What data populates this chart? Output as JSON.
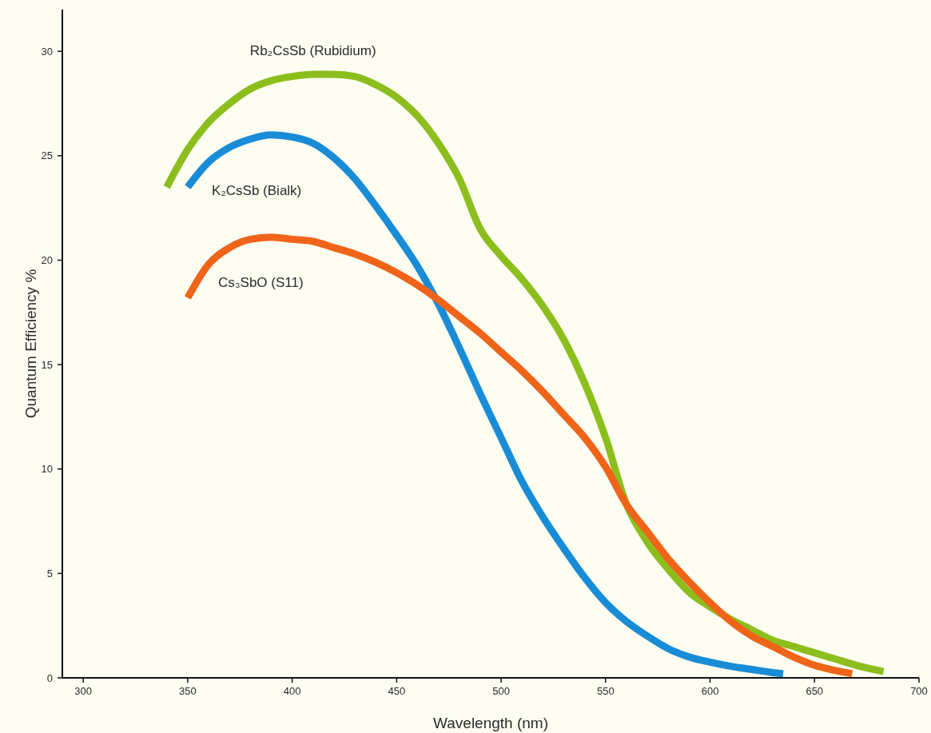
{
  "chart_data": {
    "type": "line",
    "xlabel": "Wavelength (nm)",
    "ylabel": "Quantum Efficiency %",
    "xlim": [
      290,
      700
    ],
    "ylim": [
      0,
      32
    ],
    "xticks": [
      300,
      350,
      400,
      450,
      500,
      550,
      600,
      650,
      700
    ],
    "yticks": [
      0,
      5,
      10,
      15,
      20,
      25,
      30
    ],
    "series": [
      {
        "name": "Rb₂CsSb (Rubidium)",
        "color": "#8cbe1e",
        "x": [
          340,
          350,
          360,
          370,
          380,
          390,
          400,
          410,
          420,
          430,
          440,
          450,
          460,
          470,
          480,
          490,
          500,
          510,
          520,
          530,
          540,
          550,
          560,
          570,
          580,
          590,
          600,
          610,
          620,
          630,
          640,
          650,
          660,
          670,
          683
        ],
        "values": [
          23.5,
          25.3,
          26.6,
          27.5,
          28.2,
          28.6,
          28.8,
          28.9,
          28.9,
          28.8,
          28.4,
          27.8,
          26.9,
          25.6,
          23.9,
          21.5,
          20.2,
          19.1,
          17.8,
          16.2,
          14.1,
          11.5,
          8.3,
          6.5,
          5.2,
          4.1,
          3.4,
          2.8,
          2.3,
          1.8,
          1.5,
          1.2,
          0.9,
          0.6,
          0.3
        ]
      },
      {
        "name": "K₂CsSb (Bialk)",
        "color": "#198cd7",
        "x": [
          350,
          360,
          370,
          380,
          390,
          400,
          410,
          420,
          430,
          440,
          450,
          460,
          470,
          480,
          490,
          500,
          510,
          520,
          530,
          540,
          550,
          560,
          570,
          580,
          590,
          600,
          610,
          620,
          630,
          635
        ],
        "values": [
          23.5,
          24.7,
          25.4,
          25.8,
          26.0,
          25.9,
          25.6,
          24.9,
          23.9,
          22.6,
          21.2,
          19.7,
          17.9,
          15.8,
          13.6,
          11.5,
          9.4,
          7.7,
          6.2,
          4.8,
          3.6,
          2.7,
          2.0,
          1.4,
          1.0,
          0.75,
          0.55,
          0.4,
          0.25,
          0.2
        ]
      },
      {
        "name": "Cs₃SbO (S11)",
        "color": "#f06419",
        "x": [
          350,
          360,
          370,
          380,
          390,
          400,
          410,
          420,
          430,
          440,
          450,
          460,
          470,
          480,
          490,
          500,
          510,
          520,
          530,
          540,
          550,
          560,
          570,
          580,
          590,
          600,
          610,
          620,
          630,
          640,
          650,
          660,
          668
        ],
        "values": [
          18.2,
          19.8,
          20.6,
          21.0,
          21.1,
          21.0,
          20.9,
          20.6,
          20.3,
          19.9,
          19.4,
          18.8,
          18.1,
          17.3,
          16.5,
          15.6,
          14.7,
          13.7,
          12.6,
          11.5,
          10.1,
          8.3,
          7.0,
          5.7,
          4.6,
          3.6,
          2.7,
          2.0,
          1.5,
          1.0,
          0.6,
          0.35,
          0.2
        ]
      }
    ]
  }
}
